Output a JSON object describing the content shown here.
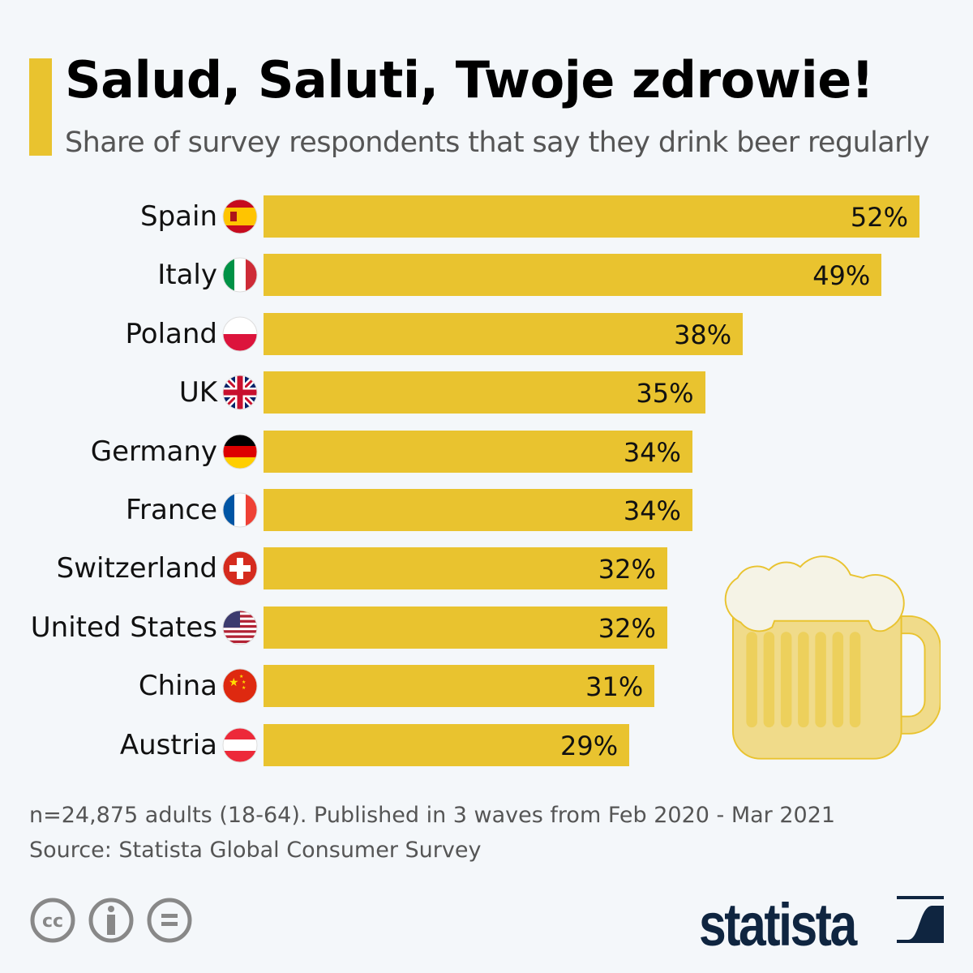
{
  "chart_data": {
    "type": "bar",
    "orientation": "horizontal",
    "title": "Salud, Saluti, Twoje zdrowie!",
    "subtitle": "Share of survey respondents that say they drink beer regularly",
    "categories": [
      "Spain",
      "Italy",
      "Poland",
      "UK",
      "Germany",
      "France",
      "Switzerland",
      "United States",
      "China",
      "Austria"
    ],
    "values": [
      52,
      49,
      38,
      35,
      34,
      34,
      32,
      32,
      31,
      29
    ],
    "value_labels": [
      "52%",
      "49%",
      "38%",
      "35%",
      "34%",
      "34%",
      "32%",
      "32%",
      "31%",
      "29%"
    ],
    "flags": [
      "spain-flag",
      "italy-flag",
      "poland-flag",
      "uk-flag",
      "germany-flag",
      "france-flag",
      "switzerland-flag",
      "us-flag",
      "china-flag",
      "austria-flag"
    ],
    "xlim": [
      0,
      52
    ],
    "grid": false,
    "bar_color": "#e9c32f"
  },
  "footer": {
    "note": "n=24,875 adults (18-64). Published in 3 waves from Feb 2020 - Mar 2021",
    "source": "Source: Statista Global Consumer Survey",
    "brand": "statista"
  },
  "colors": {
    "accent": "#e9c32f",
    "background": "#f4f7fa",
    "brand": "#0f2540"
  }
}
